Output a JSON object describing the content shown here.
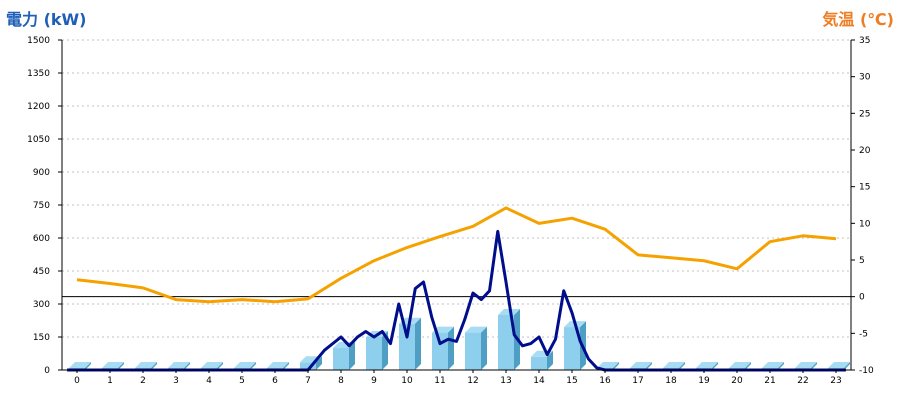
{
  "chart_data": {
    "type": "bar",
    "title_left": "電力 (kW)",
    "title_right": "気温 (℃)",
    "colors": {
      "bar_front": "#8ecfee",
      "bar_side": "#4f9ec4",
      "bar_top": "#a8dcf3",
      "power_line": "#000e8c",
      "temp_line": "#f5a200",
      "left_title": "#1f5fb8",
      "right_title": "#ef7d22",
      "grid": "#c0c0c0"
    },
    "categories": [
      "0",
      "1",
      "2",
      "3",
      "4",
      "5",
      "6",
      "7",
      "8",
      "9",
      "10",
      "11",
      "12",
      "13",
      "14",
      "15",
      "16",
      "17",
      "18",
      "19",
      "20",
      "21",
      "22",
      "23"
    ],
    "y_left": {
      "min": 0,
      "max": 1500,
      "ticks": [
        "0",
        "150",
        "300",
        "450",
        "600",
        "750",
        "900",
        "1050",
        "1200",
        "1350",
        "1500"
      ]
    },
    "y_right": {
      "min": -10,
      "max": 35,
      "ticks": [
        "-10",
        "-5",
        "0",
        "5",
        "10",
        "15",
        "20",
        "25",
        "30",
        "35"
      ],
      "zero_line": true
    },
    "grid": true,
    "series": [
      {
        "kind": "bar",
        "axis": "left",
        "values": [
          0,
          0,
          0,
          0,
          0,
          0,
          0,
          35,
          100,
          150,
          210,
          170,
          170,
          250,
          60,
          195,
          0,
          0,
          0,
          0,
          0,
          0,
          0,
          0
        ]
      },
      {
        "kind": "line",
        "axis": "left",
        "x": [
          7.0,
          7.5,
          8.0,
          8.25,
          8.5,
          8.75,
          9.0,
          9.25,
          9.5,
          9.75,
          10.0,
          10.25,
          10.5,
          10.75,
          11.0,
          11.25,
          11.5,
          11.75,
          12.0,
          12.25,
          12.5,
          12.75,
          13.0,
          13.25,
          13.5,
          13.75,
          14.0,
          14.25,
          14.5,
          14.75,
          15.0,
          15.25,
          15.5,
          15.75,
          16.0
        ],
        "values": [
          0,
          90,
          150,
          110,
          150,
          175,
          150,
          175,
          120,
          300,
          150,
          370,
          400,
          240,
          120,
          140,
          130,
          230,
          350,
          320,
          360,
          630,
          400,
          160,
          110,
          120,
          150,
          70,
          140,
          360,
          260,
          130,
          50,
          10,
          0
        ]
      },
      {
        "kind": "line",
        "axis": "right",
        "values": [
          2.3,
          1.8,
          1.2,
          -0.4,
          -0.7,
          -0.4,
          -0.7,
          -0.3,
          2.5,
          4.9,
          6.7,
          8.2,
          9.6,
          12.1,
          10.0,
          10.7,
          9.2,
          5.7,
          5.3,
          4.9,
          3.8,
          7.5,
          8.3,
          7.9
        ]
      }
    ]
  }
}
